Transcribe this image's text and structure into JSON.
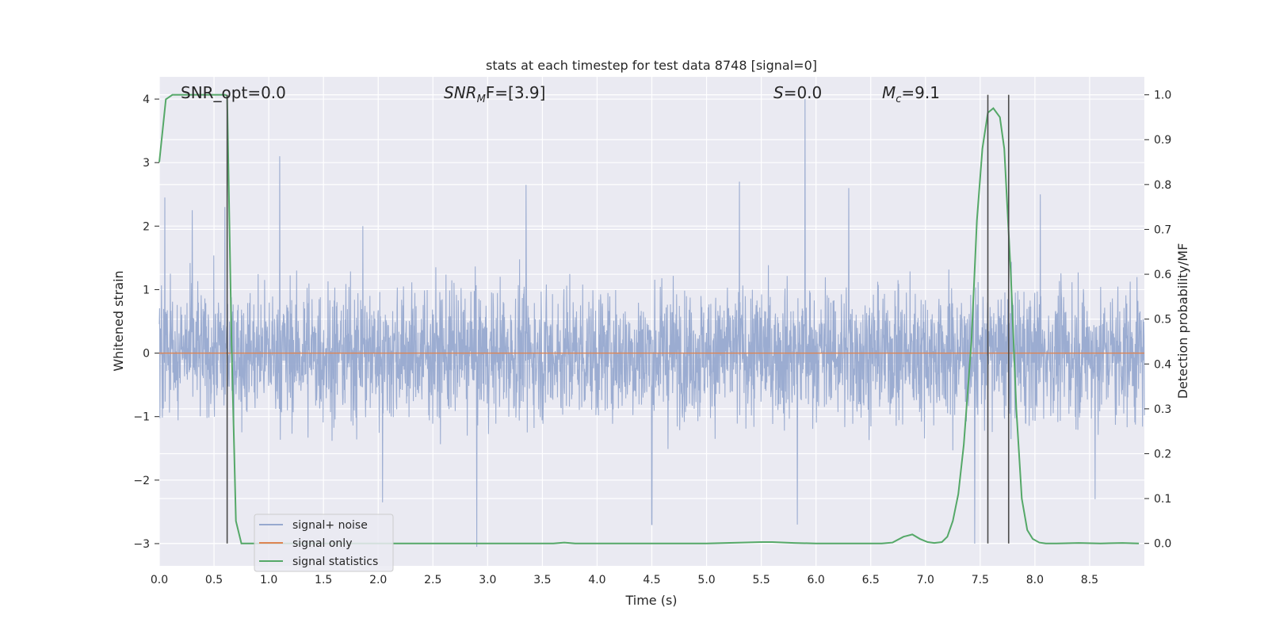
{
  "chart_data": {
    "type": "line",
    "title": "stats at each timestep for test data 8748 [signal=0]",
    "xlabel": "Time (s)",
    "ylabel_left": "Whitened strain",
    "ylabel_right": "Detection probability/MF",
    "xlim": [
      0,
      9.0
    ],
    "ylim_left": [
      -3.35,
      4.35
    ],
    "ylim_right": [
      -0.05,
      1.04
    ],
    "xticks": [
      "0.0",
      "0.5",
      "1.0",
      "1.5",
      "2.0",
      "2.5",
      "3.0",
      "3.5",
      "4.0",
      "4.5",
      "5.0",
      "5.5",
      "6.0",
      "6.5",
      "7.0",
      "7.5",
      "8.0",
      "8.5"
    ],
    "yticks_left": [
      "−3",
      "−2",
      "−1",
      "0",
      "1",
      "2",
      "3",
      "4"
    ],
    "yticks_right": [
      "0.0",
      "0.1",
      "0.2",
      "0.3",
      "0.4",
      "0.5",
      "0.6",
      "0.7",
      "0.8",
      "0.9",
      "1.0"
    ],
    "annotations": {
      "snr_opt": "SNR_opt=0.0",
      "snr_mf_main": "SNR",
      "snr_mf_sub": "M",
      "snr_mf_rest": "F=[3.9]",
      "s_var": "S",
      "s_rest": "=0.0",
      "mc_main": "M",
      "mc_sub": "c",
      "mc_rest": "=9.1"
    },
    "legend": {
      "placement": "lower-left",
      "entries": [
        "signal+ noise",
        "signal only",
        "signal statistics"
      ]
    },
    "colors": {
      "noise": "#97a9cf",
      "signal_only": "#dd8452",
      "statistics": "#55a868",
      "vlines": "#4a4a4a",
      "background": "#eaeaf2",
      "grid": "#ffffff"
    },
    "series": [
      {
        "name": "signal+ noise",
        "axis": "left",
        "description_values": "whitened strain noise, amplitude roughly within [-2, 2.5] with spikes",
        "spikes": [
          {
            "x": 0.05,
            "y": 2.45
          },
          {
            "x": 0.3,
            "y": 2.25
          },
          {
            "x": 0.6,
            "y": 2.3
          },
          {
            "x": 1.1,
            "y": 3.1
          },
          {
            "x": 1.86,
            "y": 2.0
          },
          {
            "x": 2.04,
            "y": -2.35
          },
          {
            "x": 2.9,
            "y": -3.05
          },
          {
            "x": 3.35,
            "y": 2.65
          },
          {
            "x": 4.5,
            "y": -2.7
          },
          {
            "x": 5.3,
            "y": 2.7
          },
          {
            "x": 5.9,
            "y": 4.0
          },
          {
            "x": 5.83,
            "y": -2.7
          },
          {
            "x": 6.3,
            "y": 2.6
          },
          {
            "x": 7.45,
            "y": -3.0
          },
          {
            "x": 8.05,
            "y": 2.5
          },
          {
            "x": 8.55,
            "y": -2.3
          }
        ]
      },
      {
        "name": "signal only",
        "axis": "left",
        "x": [
          0.0,
          9.0
        ],
        "y": [
          0.0,
          0.0
        ]
      },
      {
        "name": "signal statistics",
        "axis": "right",
        "x": [
          0.0,
          0.06,
          0.12,
          0.2,
          0.3,
          0.4,
          0.5,
          0.6,
          0.62,
          0.66,
          0.7,
          0.75,
          0.8,
          1.0,
          1.5,
          2.0,
          2.5,
          3.0,
          3.5,
          3.6,
          3.7,
          3.8,
          4.0,
          4.5,
          5.0,
          5.5,
          5.6,
          5.8,
          6.0,
          6.4,
          6.6,
          6.7,
          6.8,
          6.88,
          6.95,
          7.02,
          7.08,
          7.15,
          7.2,
          7.25,
          7.3,
          7.35,
          7.42,
          7.47,
          7.52,
          7.57,
          7.62,
          7.68,
          7.72,
          7.78,
          7.83,
          7.88,
          7.93,
          7.98,
          8.04,
          8.1,
          8.2,
          8.4,
          8.6,
          8.8,
          8.95
        ],
        "y": [
          0.85,
          0.99,
          1.0,
          1.0,
          1.0,
          1.0,
          1.0,
          1.0,
          0.998,
          0.45,
          0.05,
          0.0,
          0.0,
          0.0,
          0.0,
          0.0,
          0.0,
          0.0,
          0.0,
          0.0,
          0.002,
          0.0,
          0.0,
          0.0,
          0.0,
          0.003,
          0.003,
          0.001,
          0.0,
          0.0,
          0.0,
          0.002,
          0.015,
          0.02,
          0.01,
          0.003,
          0.001,
          0.003,
          0.015,
          0.05,
          0.11,
          0.22,
          0.45,
          0.72,
          0.88,
          0.96,
          0.97,
          0.95,
          0.88,
          0.6,
          0.3,
          0.1,
          0.03,
          0.01,
          0.002,
          0.0,
          0.0,
          0.001,
          0.0,
          0.001,
          0.0
        ]
      }
    ],
    "vertical_lines": [
      {
        "x": 0.62,
        "y_from": 0.0,
        "y_to": 1.0
      },
      {
        "x": 7.57,
        "y_from": 0.0,
        "y_to": 1.0
      },
      {
        "x": 7.76,
        "y_from": 0.0,
        "y_to": 1.0
      }
    ]
  }
}
